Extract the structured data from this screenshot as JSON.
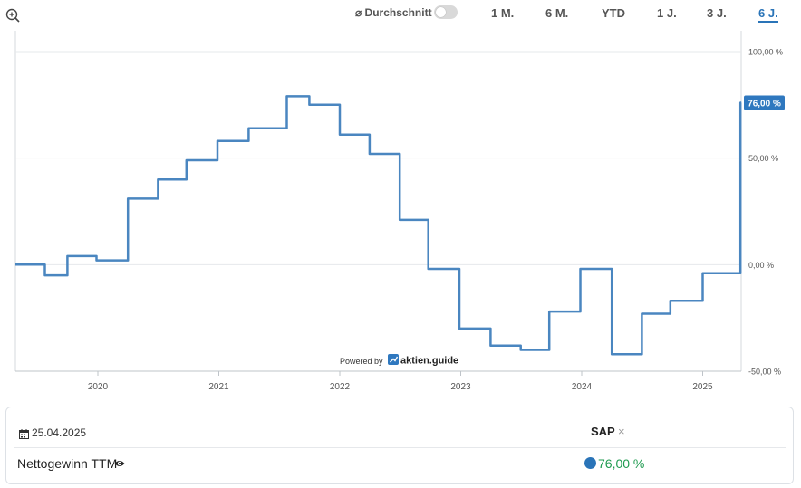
{
  "toolbar": {
    "zoom_icon": "zoom-in-icon",
    "average_label": "⌀ Durchschnitt",
    "average_enabled": false,
    "ranges": [
      "1 M.",
      "6 M.",
      "YTD",
      "1 J.",
      "3 J.",
      "6 J."
    ],
    "active_range": "6 J."
  },
  "chart_data": {
    "type": "line",
    "interpolation": "step",
    "x_axis": {
      "type": "date",
      "ticks": [
        "2020",
        "2021",
        "2022",
        "2023",
        "2024",
        "2025"
      ]
    },
    "y_axis": {
      "ticks": [
        "100,00 %",
        "50,00 %",
        "0,00 %",
        "-50,00 %"
      ],
      "ylim": [
        -50,
        100
      ],
      "position": "right"
    },
    "grid": true,
    "series": [
      {
        "color": "#4a86c0",
        "points": [
          [
            "2019-05-01",
            0
          ],
          [
            "2019-07-25",
            -5
          ],
          [
            "2019-10-01",
            4
          ],
          [
            "2019-12-28",
            2
          ],
          [
            "2020-04-01",
            31
          ],
          [
            "2020-07-01",
            40
          ],
          [
            "2020-09-25",
            49
          ],
          [
            "2020-12-28",
            58
          ],
          [
            "2021-04-01",
            64
          ],
          [
            "2021-07-25",
            79
          ],
          [
            "2021-10-01",
            75
          ],
          [
            "2022-01-01",
            61
          ],
          [
            "2022-04-01",
            52
          ],
          [
            "2022-07-01",
            21
          ],
          [
            "2022-09-25",
            -2
          ],
          [
            "2022-12-28",
            -30
          ],
          [
            "2023-04-01",
            -38
          ],
          [
            "2023-07-01",
            -40
          ],
          [
            "2023-09-25",
            -22
          ],
          [
            "2023-12-28",
            -2
          ],
          [
            "2024-04-01",
            -42
          ],
          [
            "2024-07-01",
            -23
          ],
          [
            "2024-09-25",
            -17
          ],
          [
            "2025-01-01",
            -4
          ],
          [
            "2025-04-25",
            76
          ]
        ]
      }
    ],
    "last_value_label": "76,00 %",
    "watermark": {
      "prefix": "Powered by",
      "brand": "aktien.guide"
    }
  },
  "detail_panel": {
    "calendar_icon": "calendar-icon",
    "date": "25.04.2025",
    "ticker": "SAP",
    "ticker_close": "×",
    "metric_name": "Nettogewinn TTM",
    "eye_icon": "eye-icon",
    "metric_value": "76,00 %",
    "value_color": "#1e9a4f"
  }
}
